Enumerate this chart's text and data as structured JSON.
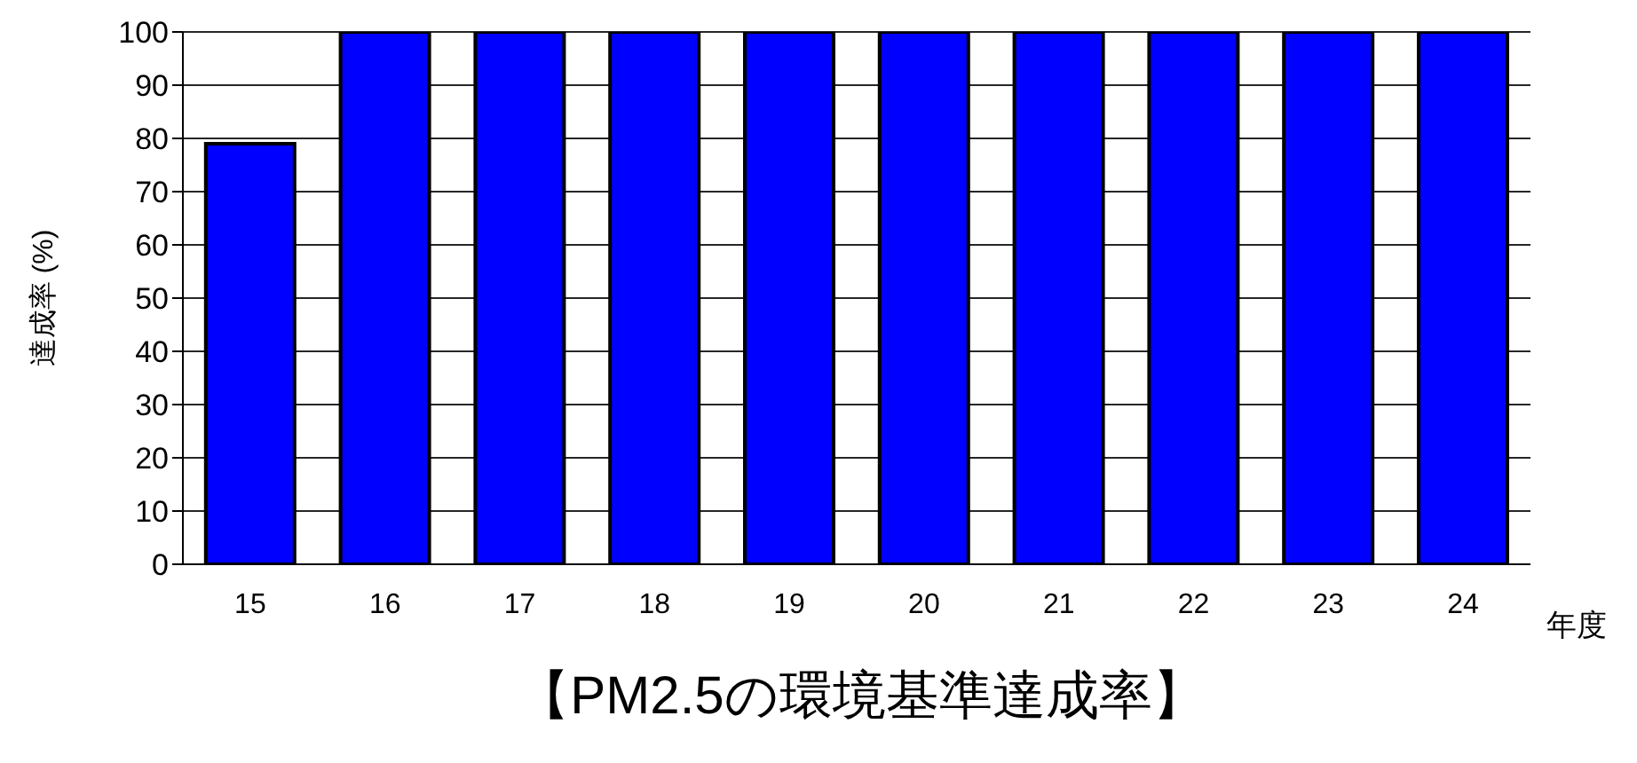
{
  "chart_data": {
    "type": "bar",
    "title": "【PM2.5の環境基準達成率】",
    "xlabel": "年度",
    "ylabel": "達成率 (%)",
    "categories": [
      "15",
      "16",
      "17",
      "18",
      "19",
      "20",
      "21",
      "22",
      "23",
      "24"
    ],
    "values": [
      79,
      100,
      100,
      100,
      100,
      100,
      100,
      100,
      100,
      100
    ],
    "color": "#0000ff",
    "ylim": [
      0,
      100
    ],
    "yticks": [
      0,
      10,
      20,
      30,
      40,
      50,
      60,
      70,
      80,
      90,
      100
    ],
    "grid": "y"
  }
}
